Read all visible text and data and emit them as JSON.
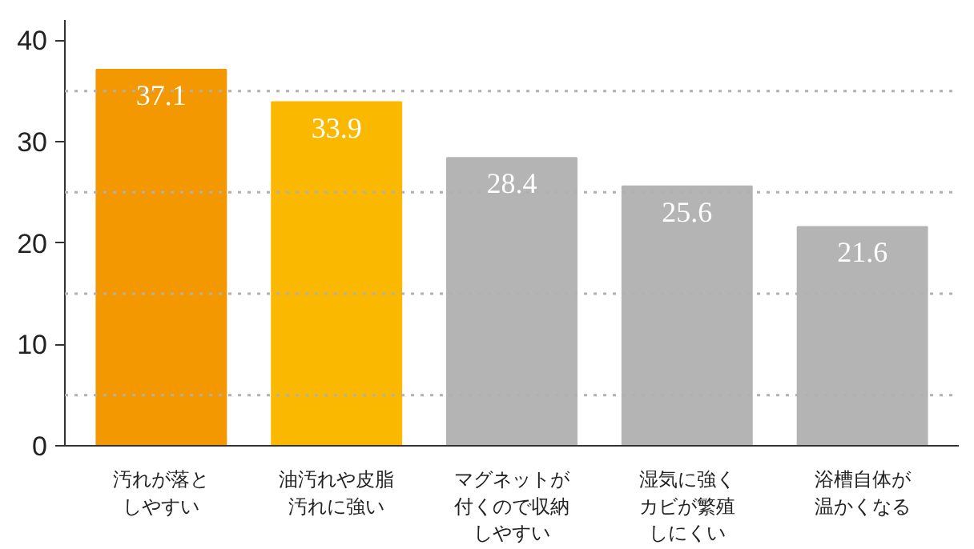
{
  "chart_data": {
    "type": "bar",
    "categories": [
      "汚れが落としやすい",
      "油汚れや皮脂汚れに強い",
      "マグネットが付くので収納しやすい",
      "湿気に強くカビが繁殖しにくい",
      "浴槽自体が温かくなる"
    ],
    "values": [
      37.1,
      33.9,
      28.4,
      25.6,
      21.6
    ],
    "colors": [
      "#f39800",
      "#fbb800",
      "#b4b4b4",
      "#b4b4b4",
      "#b4b4b4"
    ],
    "data_labels": true,
    "ylim": [
      0,
      42
    ],
    "yticks": [
      0,
      {
        "value": 5,
        "label": null
      },
      10,
      {
        "value": 15,
        "label": null
      },
      20,
      {
        "value": 25,
        "label": null
      },
      30,
      {
        "value": 35,
        "label": null
      },
      40
    ],
    "grid": "y"
  }
}
